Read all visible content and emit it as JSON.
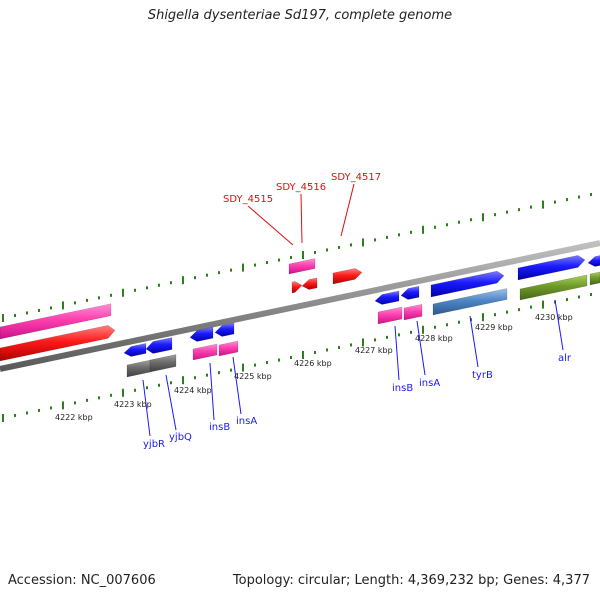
{
  "title": "Shigella dysenteriae Sd197, complete genome",
  "footer": {
    "accession": "Accession: NC_007606",
    "summary": "Topology: circular; Length: 4,369,232 bp; Genes: 4,377"
  },
  "colors": {
    "backbone": "#8a8a8a",
    "ticks": "#2e7d1f",
    "pink_feature": "#ff3fae",
    "red_feature": "#ff1a1a",
    "blue_feature": "#1a1aff",
    "grey_feature": "#6b6b6b",
    "steelblue_feature": "#4f86c6",
    "olive_feature": "#6f9a2a",
    "gene_label": "#1a1aff",
    "locus_label": "#e01010",
    "kbp_label": "#222222"
  },
  "kbp_labels": [
    "4222 kbp",
    "4223 kbp",
    "4224 kbp",
    "4225 kbp",
    "4226 kbp",
    "4227 kbp",
    "4228 kbp",
    "4229 kbp",
    "4230 kbp"
  ],
  "gene_labels": [
    "yjbR",
    "yjbQ",
    "insB",
    "insA",
    "insB",
    "insA",
    "tyrB",
    "alr"
  ],
  "locus_labels": [
    "SDY_4515",
    "SDY_4516",
    "SDY_4517"
  ]
}
